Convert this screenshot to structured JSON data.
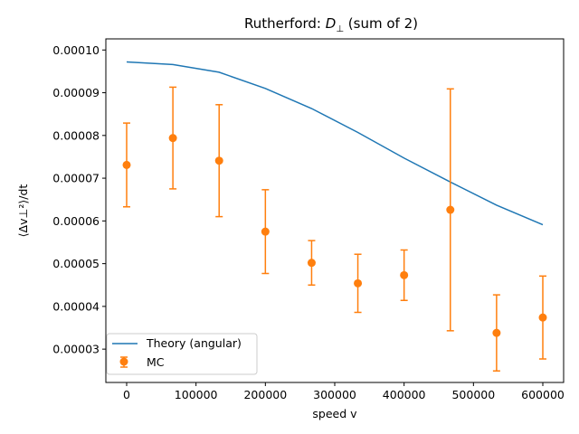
{
  "chart_data": {
    "type": "scatter",
    "title": "Rutherford: D⊥ (sum of 2)",
    "title_parts": {
      "prefix": "Rutherford: ",
      "symbol": "D",
      "subscript": "⊥",
      "suffix": " (sum of 2)"
    },
    "xlabel": "speed v",
    "ylabel": "⟨Δv⊥²⟩/dt",
    "xlim": [
      -30000,
      630000
    ],
    "ylim": [
      2.22e-05,
      0.0001026
    ],
    "x_ticks": [
      0,
      100000,
      200000,
      300000,
      400000,
      500000,
      600000
    ],
    "x_tick_labels": [
      "0",
      "100000",
      "200000",
      "300000",
      "400000",
      "500000",
      "600000"
    ],
    "y_ticks": [
      3e-05,
      4e-05,
      5e-05,
      6e-05,
      7e-05,
      8e-05,
      9e-05,
      0.0001
    ],
    "y_tick_labels": [
      "0.00003",
      "0.00004",
      "0.00005",
      "0.00006",
      "0.00007",
      "0.00008",
      "0.00009",
      "0.00010"
    ],
    "grid": false,
    "legend_position": "lower-left",
    "series": [
      {
        "name": "Theory (angular)",
        "kind": "line",
        "color": "#1f77b4",
        "x": [
          0,
          66667,
          133333,
          200000,
          266667,
          333333,
          400000,
          466667,
          533333,
          600000
        ],
        "y": [
          9.72e-05,
          9.66e-05,
          9.48e-05,
          9.1e-05,
          8.63e-05,
          8.07e-05,
          7.47e-05,
          6.91e-05,
          6.37e-05,
          5.91e-05
        ]
      },
      {
        "name": "MC",
        "kind": "errorbar",
        "color": "#ff7f0e",
        "x": [
          0,
          66667,
          133333,
          200000,
          266667,
          333333,
          400000,
          466667,
          533333,
          600000
        ],
        "y": [
          7.31e-05,
          7.94e-05,
          7.41e-05,
          5.75e-05,
          5.02e-05,
          4.54e-05,
          4.73e-05,
          6.26e-05,
          3.38e-05,
          3.74e-05
        ],
        "err": [
          9.8e-06,
          1.19e-05,
          1.31e-05,
          9.8e-06,
          5.2e-06,
          6.8e-06,
          5.9e-06,
          2.83e-05,
          8.9e-06,
          9.7e-06
        ]
      }
    ]
  }
}
